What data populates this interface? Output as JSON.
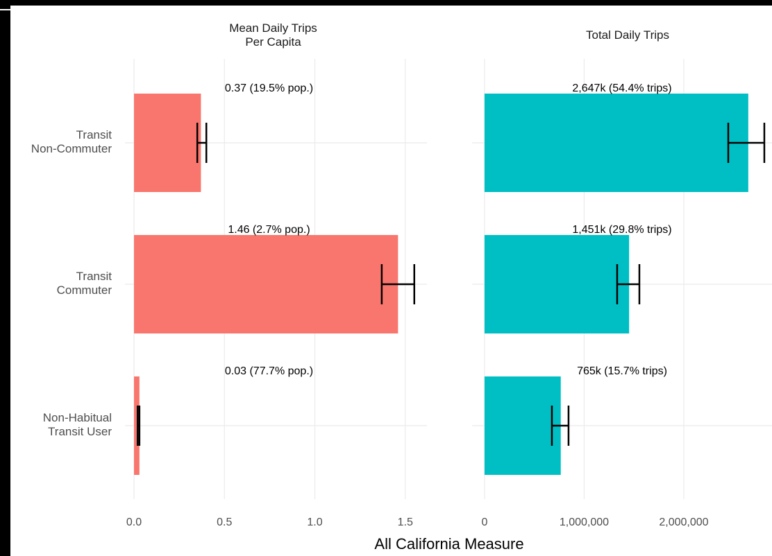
{
  "chart_data": [
    {
      "type": "bar",
      "orientation": "horizontal",
      "title": "Mean Daily Trips\nPer Capita",
      "categories": [
        "Transit\nNon-Commuter",
        "Transit\nCommuter",
        "Non-Habitual\nTransit User"
      ],
      "values": [
        0.37,
        1.46,
        0.03
      ],
      "value_labels": [
        "0.37 (19.5% pop.)",
        "1.46 (2.7% pop.)",
        "0.03 (77.7% pop.)"
      ],
      "ci_low": [
        0.35,
        1.37,
        0.02
      ],
      "ci_high": [
        0.4,
        1.55,
        0.03
      ],
      "color": "#F8766D",
      "xlim": [
        -0.05,
        1.62
      ],
      "xticks": [
        {
          "value": 0,
          "label": "0.0"
        },
        0.5,
        {
          "value": 1,
          "label": "1.0"
        },
        1.5
      ],
      "grid": true
    },
    {
      "type": "bar",
      "orientation": "horizontal",
      "title": "Total Daily Trips",
      "values": [
        2647000,
        1451000,
        765000
      ],
      "value_labels": [
        "2,647k (54.4% trips)",
        "1,451k (29.8% trips)",
        "765k (15.7% trips)"
      ],
      "ci_low": [
        2446000,
        1331000,
        676000
      ],
      "ci_high": [
        2808000,
        1554000,
        843000
      ],
      "color": "#00BFC4",
      "xlim": [
        -125000,
        2885000
      ],
      "xticks": [
        0,
        {
          "value": 1000000,
          "label": "1,000,000"
        },
        {
          "value": 2000000,
          "label": "2,000,000"
        }
      ],
      "grid": true
    }
  ],
  "x_axis_title": "All California Measure"
}
